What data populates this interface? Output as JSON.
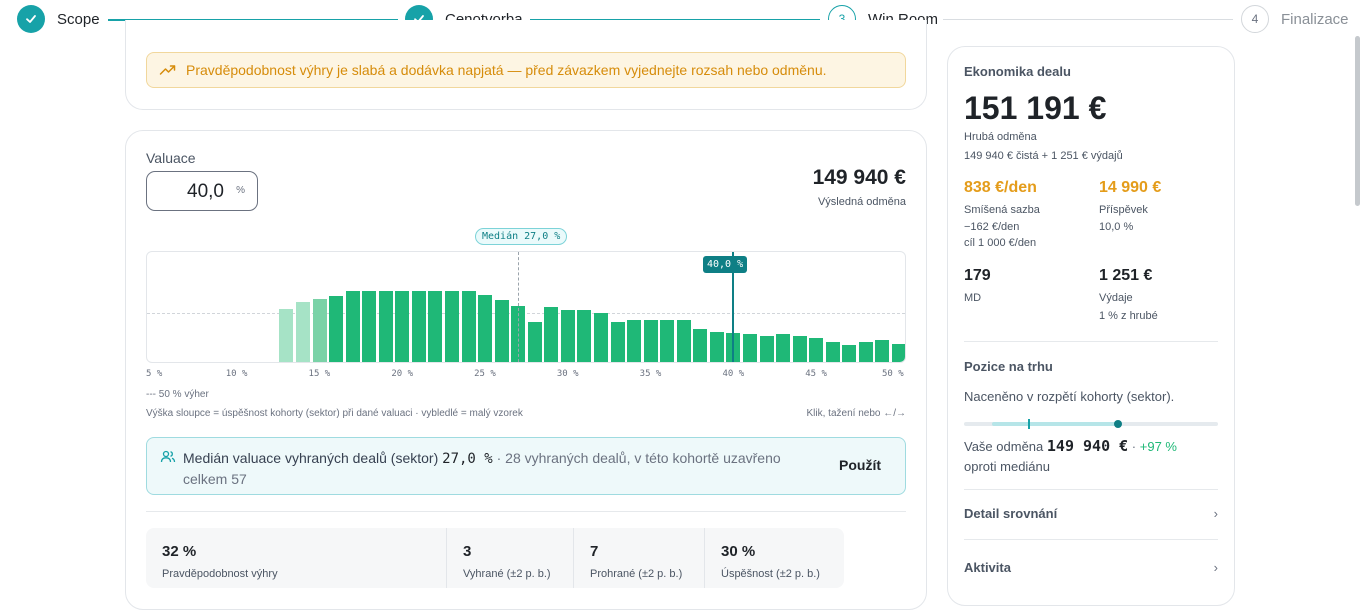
{
  "stepper": {
    "steps": [
      {
        "number": "1",
        "label": "Scope",
        "state": "done"
      },
      {
        "number": "2",
        "label": "Cenotvorba",
        "state": "done"
      },
      {
        "number": "3",
        "label": "Win Room",
        "state": "active"
      },
      {
        "number": "4",
        "label": "Finalizace",
        "state": "todo"
      }
    ],
    "accent": "#17a2a8"
  },
  "alert": {
    "icon": "trending-up-icon",
    "text": "Pravděpodobnost výhry je slabá a dodávka napjatá — před závazkem vyjednejte rozsah nebo odměnu.",
    "color": "#d68c0b"
  },
  "valuation": {
    "label": "Valuace",
    "value": "40,0",
    "unit": "%",
    "result_amount": "149 940 €",
    "result_label": "Výsledná odměna"
  },
  "chart_data": {
    "type": "bar",
    "xlabel": "",
    "ylabel": "",
    "x_ticks": [
      "5 %",
      "10 %",
      "15 %",
      "20 %",
      "25 %",
      "30 %",
      "35 %",
      "40 %",
      "45 %",
      "50 %"
    ],
    "x_start": 13.0,
    "x_step": 1.0,
    "values": [
      0.58,
      0.65,
      0.69,
      0.72,
      0.77,
      0.77,
      0.77,
      0.77,
      0.77,
      0.77,
      0.77,
      0.77,
      0.73,
      0.67,
      0.61,
      0.44,
      0.6,
      0.57,
      0.56,
      0.53,
      0.43,
      0.46,
      0.46,
      0.46,
      0.46,
      0.36,
      0.33,
      0.31,
      0.3,
      0.28,
      0.3,
      0.28,
      0.26,
      0.22,
      0.19,
      0.22,
      0.24,
      0.2,
      0.24,
      0.25,
      0.17
    ],
    "faded_count": 3,
    "median": 27.0,
    "selected": 40.0,
    "median_label": "Medián 27,0 %",
    "selected_label": "40,0 %",
    "fifty_label": "--- 50 % výher",
    "note": "Výška sloupce = úspěšnost kohorty (sektor) při dané valuaci · vybledlé = malý vzorek",
    "hint": "Klik, tažení nebo ←/→"
  },
  "median_box": {
    "icon": "users-icon",
    "text_main": "Medián valuace vyhraných dealů (sektor)",
    "text_value": "27,0 %",
    "text_rest": "· 28 vyhraných dealů, v této kohortě uzavřeno celkem 57",
    "apply_label": "Použít"
  },
  "stats": [
    {
      "value": "32 %",
      "label": "Pravděpodobnost výhry"
    },
    {
      "value": "3",
      "label": "Vyhrané (±2 p. b.)"
    },
    {
      "value": "7",
      "label": "Prohrané (±2 p. b.)"
    },
    {
      "value": "30 %",
      "label": "Úspěšnost (±2 p. b.)"
    }
  ],
  "economics": {
    "title": "Ekonomika dealu",
    "gross": "151 191 €",
    "gross_label": "Hrubá odměna",
    "gross_breakdown": "149 940 € čistá + 1 251 € výdajů",
    "blended_rate": "838 €/den",
    "blended_label": "Smíšená sazba",
    "blended_delta": "−162 €/den",
    "blended_target": "cíl 1 000 €/den",
    "contribution": "14 990 €",
    "contribution_label": "Příspěvek",
    "contribution_pct": "10,0 %",
    "md": "179",
    "md_label": "MD",
    "expenses": "1 251 €",
    "expenses_label": "Výdaje",
    "expenses_pct": "1 % z hrubé",
    "orange": "#e49c1a"
  },
  "market": {
    "title": "Pozice na trhu",
    "text": "Naceněno v rozpětí kohorty (sektor).",
    "your_prefix": "Vaše odměna",
    "your_value": "149 940 €",
    "your_delta": "+97 %",
    "your_suffix": "oproti mediánu",
    "green": "#1fb877"
  },
  "links": {
    "detail": "Detail srovnání",
    "activity": "Aktivita",
    "chevron": "›"
  }
}
